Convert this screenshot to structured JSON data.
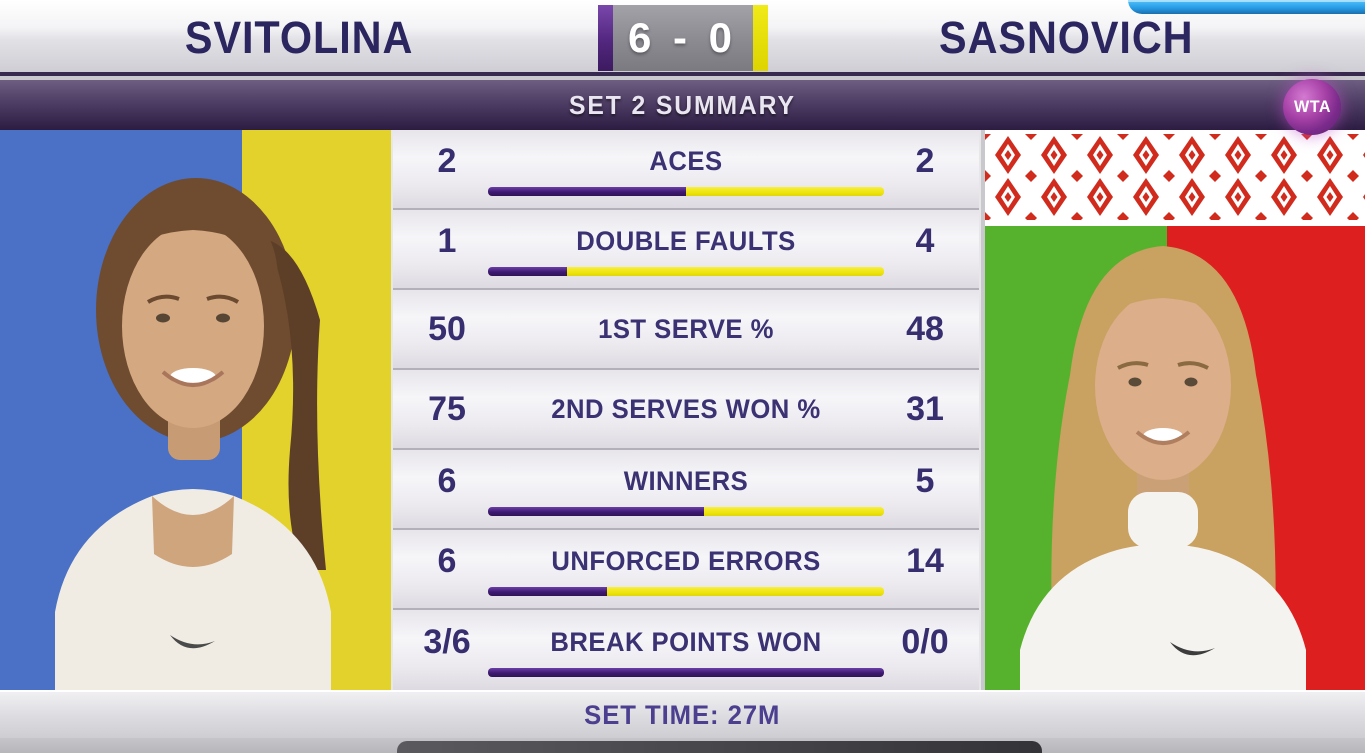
{
  "header": {
    "left_player": "SVITOLINA",
    "right_player": "SASNOVICH",
    "score": "6 - 0"
  },
  "summary_bar": {
    "title": "SET 2 SUMMARY",
    "logo_text": "WTA"
  },
  "stats": {
    "rows": [
      {
        "left": "2",
        "label": "ACES",
        "right": "2",
        "bar_left_pct": 50,
        "bar_right_pct": 50
      },
      {
        "left": "1",
        "label": "DOUBLE FAULTS",
        "right": "4",
        "bar_left_pct": 20,
        "bar_right_pct": 80
      },
      {
        "left": "50",
        "label": "1ST SERVE %",
        "right": "48"
      },
      {
        "left": "75",
        "label": "2ND SERVES WON %",
        "right": "31"
      },
      {
        "left": "6",
        "label": "WINNERS",
        "right": "5",
        "bar_left_pct": 54.5,
        "bar_right_pct": 45.5
      },
      {
        "left": "6",
        "label": "UNFORCED ERRORS",
        "right": "14",
        "bar_left_pct": 30,
        "bar_right_pct": 70
      },
      {
        "left": "3/6",
        "label": "BREAK POINTS WON",
        "right": "0/0",
        "bar_left_pct": 100,
        "bar_right_pct": 0
      }
    ]
  },
  "footer": {
    "set_time": "SET TIME: 27M"
  },
  "colors": {
    "stat_bar_purple": "#45217a",
    "stat_bar_yellow": "#f2e824",
    "text_navy_purple": "#362e6e",
    "summary_bar_purple": "#3d2c54",
    "score_tab_purple": "#52277f",
    "score_tab_yellow": "#e8e205",
    "wta_logo_magenta": "#a842a8",
    "ukraine_blue": "#4a71c5",
    "ukraine_yellow": "#e3d22b",
    "belarus_green": "#56b22c",
    "belarus_red": "#dd1f1f",
    "ornament_red": "#d12b1e"
  },
  "chart_data": {
    "type": "bar",
    "title": "SET 2 SUMMARY",
    "subtitle": "SET TIME: 27M",
    "score": "6 - 0",
    "categories": [
      "ACES",
      "DOUBLE FAULTS",
      "1ST SERVE %",
      "2ND SERVES WON %",
      "WINNERS",
      "UNFORCED ERRORS",
      "BREAK POINTS WON"
    ],
    "series": [
      {
        "name": "SVITOLINA",
        "values": [
          "2",
          "1",
          "50",
          "75",
          "6",
          "6",
          "3/6"
        ],
        "color": "#45217a"
      },
      {
        "name": "SASNOVICH",
        "values": [
          "2",
          "4",
          "48",
          "31",
          "5",
          "14",
          "0/0"
        ],
        "color": "#f2e824"
      }
    ],
    "bar_split_pct": [
      [
        50,
        50
      ],
      [
        20,
        80
      ],
      [
        null,
        null
      ],
      [
        null,
        null
      ],
      [
        54.5,
        45.5
      ],
      [
        30,
        70
      ],
      [
        100,
        0
      ]
    ],
    "legend_position": "top",
    "grid": false
  }
}
